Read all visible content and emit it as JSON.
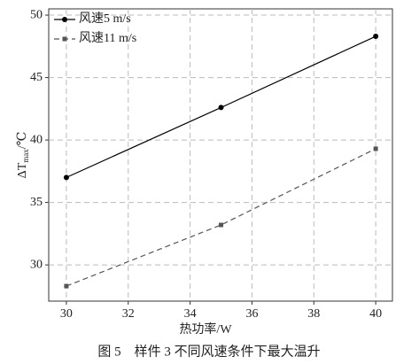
{
  "chart_data": {
    "type": "line",
    "x_label": "热功率/W",
    "y_label": {
      "main": "ΔT",
      "sub": "max",
      "unit": "/℃"
    },
    "caption": "图 5　样件 3 不同风速条件下最大温升",
    "x": [
      30,
      35,
      40
    ],
    "series": [
      {
        "name": "风速5 m/s",
        "color": "#000000",
        "dash": false,
        "marker": "circle",
        "values": [
          37.0,
          42.6,
          48.3
        ]
      },
      {
        "name": "风速11 m/s",
        "color": "#555555",
        "dash": true,
        "marker": "square",
        "values": [
          28.3,
          33.2,
          39.3
        ]
      }
    ],
    "xlim": [
      29.43,
      40.54
    ],
    "xticks": [
      30,
      32,
      34,
      36,
      38,
      40
    ],
    "ylim": [
      27.1,
      50.5
    ],
    "yticks": [
      30,
      35,
      40,
      45,
      50
    ],
    "grid": true,
    "legend": "top-left"
  }
}
